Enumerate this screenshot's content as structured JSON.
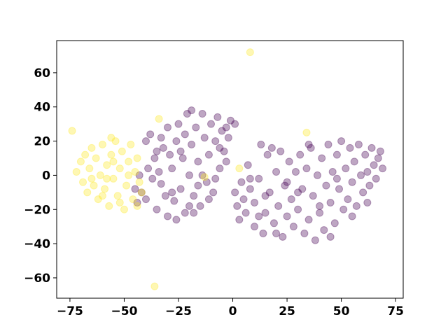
{
  "chart_data": {
    "type": "scatter",
    "xlim": [
      -81.1,
      78.5
    ],
    "ylim": [
      -71.9,
      78.8
    ],
    "xticks": [
      {
        "value": -75,
        "label": "−75"
      },
      {
        "value": -50,
        "label": "−50"
      },
      {
        "value": -25,
        "label": "−25"
      },
      0,
      25,
      50,
      75
    ],
    "yticks": [
      {
        "value": -60,
        "label": "−60"
      },
      {
        "value": -40,
        "label": "−40"
      },
      {
        "value": -20,
        "label": "−20"
      },
      0,
      20,
      40,
      60
    ],
    "grid": false,
    "opacity": 0.35,
    "series": [
      {
        "color": "#440154",
        "x": [
          -44,
          -42,
          -40,
          -38,
          -36,
          -35,
          -33,
          -32,
          -30,
          -30,
          -28,
          -27,
          -26,
          -25,
          -24,
          -23,
          -22,
          -21,
          -20,
          -19,
          -18,
          -17,
          -16,
          -15,
          -14,
          -13,
          -12,
          -11,
          -10,
          -9,
          -8,
          -7,
          -6,
          -5,
          -4,
          -3,
          -2,
          -1,
          1,
          -37,
          -34,
          -29,
          -20,
          -16,
          -11,
          -8,
          -40,
          -43,
          -39,
          -31,
          -26,
          -19,
          -24,
          -14,
          -6,
          -3,
          -35,
          -28,
          -22,
          -45,
          -33,
          -18,
          1,
          2,
          3,
          4,
          5,
          6,
          7,
          8,
          10,
          10,
          12,
          13,
          14,
          15,
          16,
          17,
          18,
          19,
          20,
          21,
          22,
          23,
          24,
          25,
          26,
          27,
          28,
          29,
          30,
          31,
          32,
          33,
          34,
          35,
          36,
          37,
          38,
          39,
          40,
          41,
          42,
          43,
          44,
          45,
          46,
          47,
          48,
          49,
          50,
          51,
          52,
          53,
          54,
          55,
          56,
          57,
          58,
          59,
          60,
          61,
          62,
          63,
          64,
          65,
          66,
          67,
          68,
          69,
          35,
          20,
          12,
          45,
          30,
          55,
          25,
          40,
          8,
          62,
          48,
          15
        ],
        "values": [
          -16,
          -10,
          20,
          24,
          10,
          -20,
          -5,
          16,
          -24,
          28,
          4,
          -15,
          20,
          30,
          -8,
          10,
          -22,
          36,
          0,
          18,
          -12,
          28,
          8,
          -18,
          36,
          22,
          -4,
          12,
          30,
          -10,
          20,
          34,
          4,
          26,
          14,
          28,
          22,
          32,
          30,
          -2,
          2,
          12,
          -18,
          -6,
          -14,
          -2,
          -14,
          0,
          4,
          -12,
          -26,
          38,
          14,
          0,
          16,
          8,
          14,
          -10,
          24,
          -8,
          22,
          -22,
          -10,
          -18,
          -26,
          -4,
          -14,
          -22,
          6,
          -8,
          -30,
          -16,
          -2,
          18,
          -34,
          -22,
          12,
          -10,
          16,
          -28,
          2,
          -18,
          14,
          -36,
          -6,
          -24,
          8,
          -14,
          -30,
          2,
          -20,
          12,
          -8,
          -34,
          4,
          -26,
          16,
          -12,
          -38,
          0,
          -22,
          10,
          -32,
          -6,
          18,
          -16,
          2,
          -28,
          12,
          -8,
          20,
          -20,
          4,
          -14,
          16,
          -4,
          8,
          -18,
          18,
          0,
          -10,
          12,
          2,
          -6,
          16,
          6,
          -2,
          10,
          14,
          4,
          18,
          -34,
          -24,
          -36,
          -10,
          -24,
          -4,
          -18,
          -2,
          -16,
          -2,
          -12
        ]
      },
      {
        "color": "#fde725",
        "x": [
          -72,
          -70,
          -69,
          -68,
          -67,
          -66,
          -65,
          -64,
          -63,
          -62,
          -61,
          -60,
          -59,
          -58,
          -57,
          -56,
          -55,
          -54,
          -53,
          -52,
          -51,
          -50,
          -49,
          -48,
          -47,
          -46,
          -45,
          -44,
          -43,
          -42,
          -58,
          -55,
          -52,
          -60,
          -48,
          -65,
          -56,
          -74,
          8,
          -36,
          34,
          3,
          -13,
          -34,
          -44
        ],
        "values": [
          2,
          8,
          -4,
          12,
          -10,
          4,
          16,
          -6,
          10,
          -14,
          0,
          18,
          -8,
          6,
          -18,
          12,
          -2,
          20,
          -12,
          4,
          14,
          -20,
          -6,
          8,
          18,
          -14,
          2,
          10,
          -4,
          -10,
          -2,
          8,
          -16,
          -12,
          0,
          -2,
          22,
          26,
          72,
          -65,
          25,
          4,
          -1,
          33,
          -18
        ]
      }
    ]
  }
}
